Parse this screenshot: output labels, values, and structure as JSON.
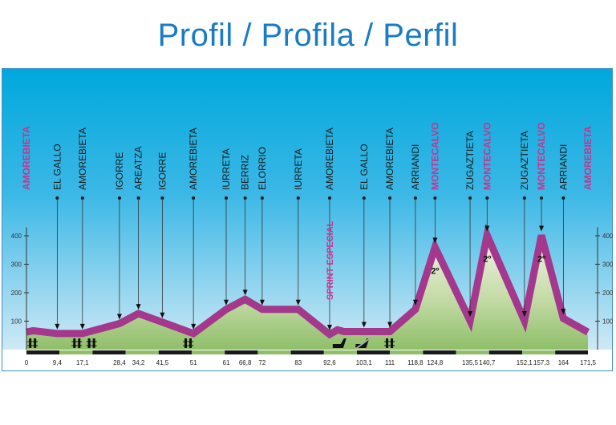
{
  "title": "Profil / Profila / Perfil",
  "colors": {
    "title": "#1a7cc4",
    "sky_top": "#00a8dd",
    "sky_bottom": "#cfe9f5",
    "road": "#a3388c",
    "ground": "#8fbf6a",
    "highlight": "#c4358e"
  },
  "waypoints": [
    {
      "km": "0",
      "name": "AMOREBIETA",
      "highlight": true
    },
    {
      "km": "9,4",
      "name": "EL GALLO",
      "highlight": false
    },
    {
      "km": "17,1",
      "name": "AMOREBIETA",
      "highlight": false
    },
    {
      "km": "28,4",
      "name": "IGORRE",
      "highlight": false
    },
    {
      "km": "34,2",
      "name": "AREATZA",
      "highlight": false
    },
    {
      "km": "41,5",
      "name": "IGORRE",
      "highlight": false
    },
    {
      "km": "51",
      "name": "AMOREBIETA",
      "highlight": false
    },
    {
      "km": "61",
      "name": "IURRETA",
      "highlight": false
    },
    {
      "km": "66,8",
      "name": "BERRIZ",
      "highlight": false
    },
    {
      "km": "72",
      "name": "ELORRIO",
      "highlight": false
    },
    {
      "km": "83",
      "name": "IURRETA",
      "highlight": false
    },
    {
      "km": "92,6",
      "name": "AMOREBIETA",
      "highlight": false
    },
    {
      "km": "103,1",
      "name": "EL GALLO",
      "highlight": false
    },
    {
      "km": "111",
      "name": "AMOREBIETA",
      "highlight": false
    },
    {
      "km": "118,8",
      "name": "ARRIANDI",
      "highlight": false
    },
    {
      "km": "124,8",
      "name": "MONTECALVO",
      "highlight": true
    },
    {
      "km": "135,5",
      "name": "ZUGAZTIETA",
      "highlight": false
    },
    {
      "km": "140,7",
      "name": "MONTECALVO",
      "highlight": true
    },
    {
      "km": "152,1",
      "name": "ZUGAZTIETA",
      "highlight": false
    },
    {
      "km": "157,3",
      "name": "MONTECALVO",
      "highlight": true
    },
    {
      "km": "164",
      "name": "ARRIANDI",
      "highlight": false
    },
    {
      "km": "171,5",
      "name": "AMOREBIETA",
      "highlight": true
    }
  ],
  "sprint_label": "SPRINT ESPECIAL",
  "climb_category": "2º",
  "y_ticks": [
    "100",
    "200",
    "300",
    "400"
  ],
  "profile": [
    [
      0,
      70
    ],
    [
      2,
      75
    ],
    [
      9.4,
      65
    ],
    [
      17.1,
      65
    ],
    [
      28.4,
      100
    ],
    [
      34.2,
      135
    ],
    [
      41.5,
      105
    ],
    [
      51,
      65
    ],
    [
      61,
      150
    ],
    [
      66.8,
      185
    ],
    [
      72,
      150
    ],
    [
      83,
      150
    ],
    [
      92.6,
      62
    ],
    [
      95,
      78
    ],
    [
      97,
      72
    ],
    [
      103.1,
      72
    ],
    [
      111,
      72
    ],
    [
      118.8,
      150
    ],
    [
      124.8,
      368
    ],
    [
      135.5,
      110
    ],
    [
      140.7,
      410
    ],
    [
      152.1,
      110
    ],
    [
      157.3,
      410
    ],
    [
      164,
      118
    ],
    [
      171.5,
      70
    ]
  ],
  "icons": [
    {
      "km": 2,
      "type": "level-crossing-icon"
    },
    {
      "km": 15.5,
      "type": "level-crossing-icon"
    },
    {
      "km": 20,
      "type": "level-crossing-icon"
    },
    {
      "km": 49.5,
      "type": "level-crossing-icon"
    },
    {
      "km": 96,
      "type": "feeding-zone-icon"
    },
    {
      "km": 103,
      "type": "feeding-zone-end-icon"
    },
    {
      "km": 111,
      "type": "level-crossing-icon"
    }
  ]
}
